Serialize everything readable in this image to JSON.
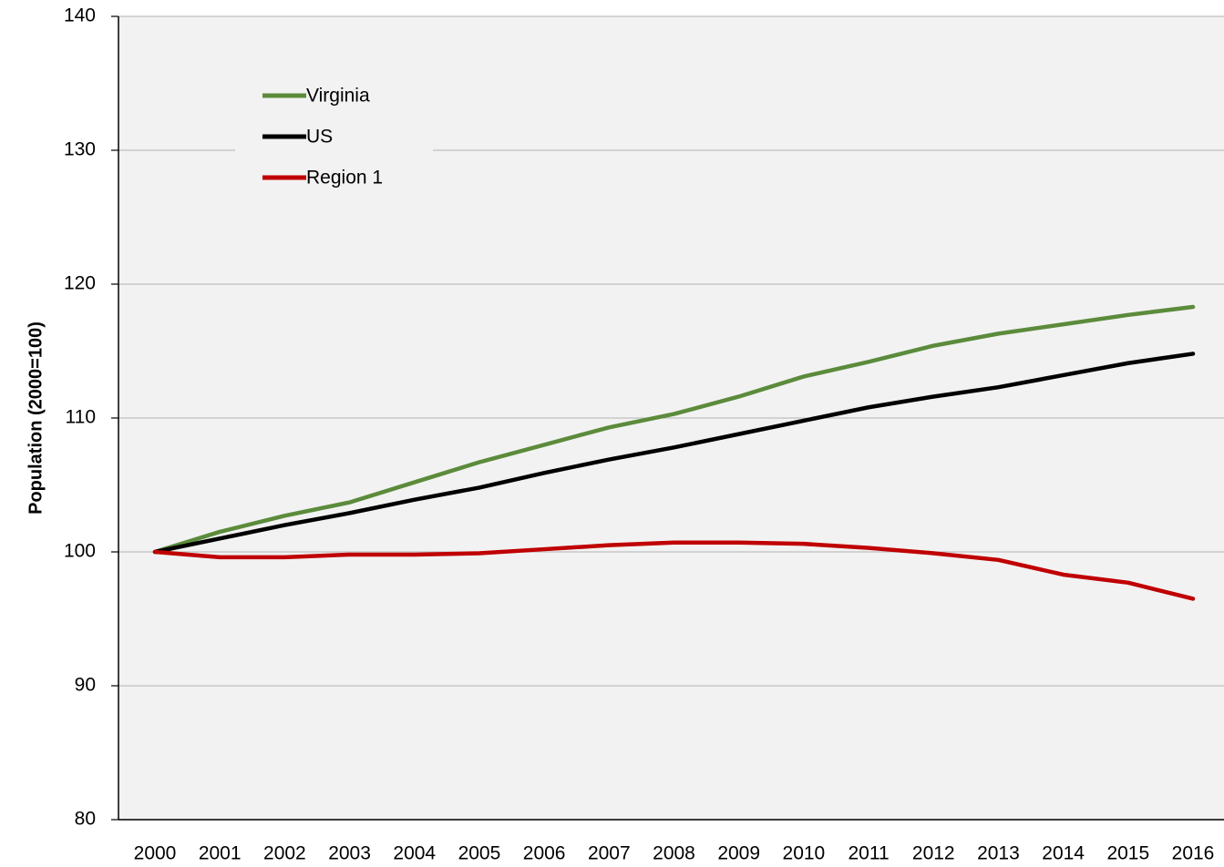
{
  "chart_data": {
    "type": "line",
    "y_label": "Population (2000=100)",
    "categories": [
      "2000",
      "2001",
      "2002",
      "2003",
      "2004",
      "2005",
      "2006",
      "2007",
      "2008",
      "2009",
      "2010",
      "2011",
      "2012",
      "2013",
      "2014",
      "2015",
      "2016"
    ],
    "series": [
      {
        "name": "Virginia",
        "color": "#5b8b3b",
        "values": [
          100,
          101.5,
          102.7,
          103.7,
          105.2,
          106.7,
          108.0,
          109.3,
          110.3,
          111.6,
          113.1,
          114.2,
          115.4,
          116.3,
          117.0,
          117.7,
          118.3
        ]
      },
      {
        "name": "US",
        "color": "#000000",
        "values": [
          100,
          101.0,
          102.0,
          102.9,
          103.9,
          104.8,
          105.9,
          106.9,
          107.8,
          108.8,
          109.8,
          110.8,
          111.6,
          112.3,
          113.2,
          114.1,
          114.8
        ]
      },
      {
        "name": "Region 1",
        "color": "#c00000",
        "values": [
          100,
          99.6,
          99.6,
          99.8,
          99.8,
          99.9,
          100.2,
          100.5,
          100.7,
          100.7,
          100.6,
          100.3,
          99.9,
          99.4,
          98.3,
          97.7,
          96.5
        ]
      }
    ],
    "ylim": [
      80,
      140
    ],
    "yticks": [
      80,
      90,
      100,
      110,
      120,
      130,
      140
    ],
    "grid": true,
    "legend": "upper-left"
  }
}
